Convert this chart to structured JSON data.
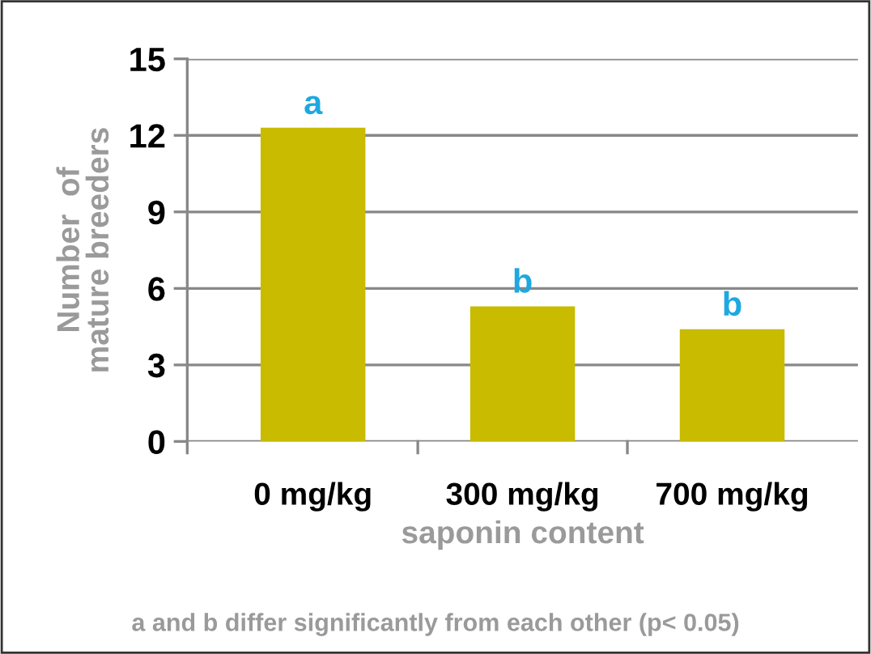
{
  "chart_data": {
    "type": "bar",
    "xlabel": "saponin content",
    "ylabel": "Number  of\nmature breeders",
    "categories": [
      "0 mg/kg",
      "300 mg/kg",
      "700 mg/kg"
    ],
    "values": [
      12.3,
      5.3,
      4.4
    ],
    "color": "#c8bb00",
    "ylim": [
      0,
      15
    ],
    "yticks": [
      0,
      3,
      6,
      9,
      12,
      15
    ],
    "grid": "y",
    "annotations": [
      {
        "text": "a",
        "x": "0 mg/kg",
        "y": 12.3
      },
      {
        "text": "b",
        "x": "300 mg/kg",
        "y": 5.3
      },
      {
        "text": "b",
        "x": "700 mg/kg",
        "y": 4.4
      },
      "a and b differ significantly from each other (p< 0.05)"
    ]
  }
}
